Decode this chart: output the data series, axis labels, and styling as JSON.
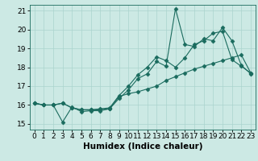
{
  "xlabel": "Humidex (Indice chaleur)",
  "bg_color": "#cce9e4",
  "line_color": "#1a6b5e",
  "grid_color": "#aad4ce",
  "xlim": [
    -0.5,
    23.5
  ],
  "ylim": [
    14.7,
    21.3
  ],
  "xticks": [
    0,
    1,
    2,
    3,
    4,
    5,
    6,
    7,
    8,
    9,
    10,
    11,
    12,
    13,
    14,
    15,
    16,
    17,
    18,
    19,
    20,
    21,
    22,
    23
  ],
  "yticks": [
    15,
    16,
    17,
    18,
    19,
    20,
    21
  ],
  "series": [
    {
      "x": [
        0,
        1,
        2,
        3,
        4,
        5,
        6,
        7,
        8,
        9,
        10,
        11,
        12,
        13,
        14,
        15,
        16,
        17,
        18,
        19,
        20,
        21,
        22,
        23
      ],
      "y": [
        16.1,
        16.0,
        16.0,
        16.1,
        15.85,
        15.75,
        15.75,
        15.75,
        15.8,
        16.35,
        16.8,
        17.4,
        17.65,
        18.3,
        18.05,
        21.1,
        19.2,
        19.1,
        19.5,
        19.4,
        20.1,
        19.4,
        18.1,
        17.65
      ]
    },
    {
      "x": [
        0,
        1,
        2,
        3,
        4,
        5,
        6,
        7,
        8,
        9,
        10,
        11,
        12,
        13,
        14,
        15,
        16,
        17,
        18,
        19,
        20,
        21,
        22,
        23
      ],
      "y": [
        16.1,
        16.0,
        16.0,
        16.1,
        15.85,
        15.75,
        15.75,
        15.8,
        15.85,
        16.5,
        17.0,
        17.6,
        18.0,
        18.55,
        18.35,
        18.0,
        18.5,
        19.2,
        19.4,
        19.8,
        19.9,
        18.4,
        18.05,
        17.7
      ]
    },
    {
      "x": [
        0,
        1,
        2,
        3,
        4,
        5,
        6,
        7,
        8,
        9,
        10,
        11,
        12,
        13,
        14,
        15,
        16,
        17,
        18,
        19,
        20,
        21,
        22,
        23
      ],
      "y": [
        16.1,
        16.0,
        16.0,
        15.1,
        15.9,
        15.65,
        15.7,
        15.7,
        15.8,
        16.45,
        16.6,
        16.7,
        16.85,
        17.0,
        17.3,
        17.5,
        17.7,
        17.9,
        18.05,
        18.2,
        18.35,
        18.5,
        18.65,
        17.7
      ]
    }
  ],
  "marker": "D",
  "markersize": 2.5,
  "linewidth": 0.8,
  "xlabel_fontsize": 7.5,
  "tick_fontsize": 6.5
}
